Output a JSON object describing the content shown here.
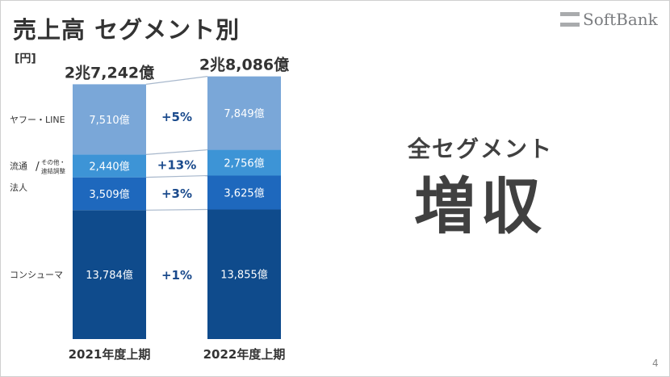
{
  "slide": {
    "title": "売上高 セグメント別",
    "unit": "[円]",
    "logo_text": "SoftBank",
    "headline_line1": "全セグメント",
    "headline_line2": "増収",
    "page_number": "4"
  },
  "chart_data": {
    "type": "bar",
    "stacked": true,
    "categories": [
      "2021年度上期",
      "2022年度上期"
    ],
    "totals": [
      "2兆7,242億",
      "2兆8,086億"
    ],
    "series": [
      {
        "name": "コンシューマ",
        "values": [
          13784,
          13855
        ],
        "value_labels": [
          "13,784億",
          "13,855億"
        ],
        "growth": "+1%",
        "color": "#0f4b8c"
      },
      {
        "name": "法人",
        "values": [
          3509,
          3625
        ],
        "value_labels": [
          "3,509億",
          "3,625億"
        ],
        "growth": "+3%",
        "color": "#1e68bd"
      },
      {
        "name": "流通",
        "side_label_sub": [
          "その他・",
          "連結調整"
        ],
        "values": [
          2440,
          2756
        ],
        "value_labels": [
          "2,440億",
          "2,756億"
        ],
        "growth": "+13%",
        "color": "#3d94d6"
      },
      {
        "name": "ヤフー・LINE",
        "values": [
          7510,
          7849
        ],
        "value_labels": [
          "7,510億",
          "7,849億"
        ],
        "growth": "+5%",
        "color": "#7aa7d8"
      }
    ],
    "ylabel": "",
    "grid": false,
    "legend": "left labels"
  },
  "colors": {
    "connector": "#a8b8cc",
    "headline": "#404040"
  }
}
